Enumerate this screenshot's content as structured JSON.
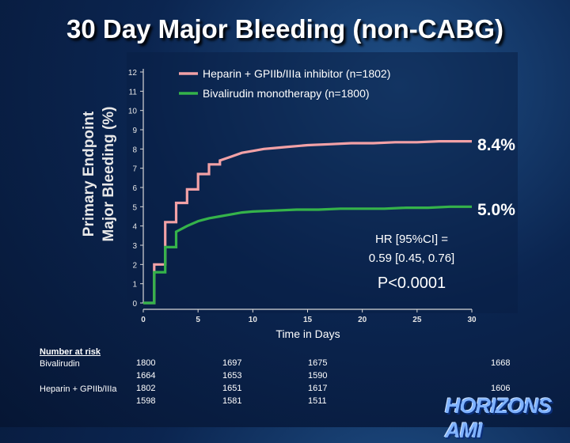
{
  "title": "30 Day Major Bleeding (non-CABG)",
  "ylabel_line1": "Primary Endpoint",
  "ylabel_line2": "Major Bleeding (%)",
  "logo_text": "HORIZONS AMI",
  "chart_data": {
    "type": "line",
    "xlabel": "Time in Days",
    "xlim": [
      0,
      30
    ],
    "ylim": [
      0,
      12
    ],
    "xticks": [
      0,
      5,
      10,
      15,
      20,
      25,
      30
    ],
    "yticks": [
      0,
      1,
      2,
      3,
      4,
      5,
      6,
      7,
      8,
      9,
      10,
      11,
      12
    ],
    "legend_position": "top",
    "series": [
      {
        "name": "Heparin + GPIIb/IIIa inhibitor (n=1802)",
        "color": "#f2a1a6",
        "x": [
          0,
          1,
          1,
          2,
          2,
          3,
          3,
          4,
          4,
          5,
          5,
          6,
          6,
          7,
          7,
          8,
          9,
          10,
          11,
          12,
          13,
          14,
          15,
          17,
          19,
          21,
          23,
          25,
          27,
          28,
          30
        ],
        "y": [
          0,
          0,
          2.0,
          2.0,
          4.2,
          4.2,
          5.2,
          5.2,
          5.9,
          5.9,
          6.7,
          6.7,
          7.2,
          7.2,
          7.4,
          7.6,
          7.8,
          7.9,
          8.0,
          8.05,
          8.1,
          8.15,
          8.2,
          8.25,
          8.3,
          8.3,
          8.35,
          8.35,
          8.4,
          8.4,
          8.4
        ],
        "end_label": "8.4%"
      },
      {
        "name": "Bivalirudin monotherapy (n=1800)",
        "color": "#35b34a",
        "x": [
          0,
          1,
          1,
          2,
          2,
          3,
          3,
          4,
          5,
          6,
          7,
          8,
          9,
          10,
          12,
          14,
          16,
          18,
          20,
          22,
          24,
          26,
          28,
          30
        ],
        "y": [
          0,
          0,
          1.6,
          1.6,
          2.9,
          2.9,
          3.7,
          4.0,
          4.25,
          4.4,
          4.5,
          4.6,
          4.7,
          4.75,
          4.8,
          4.85,
          4.85,
          4.9,
          4.9,
          4.9,
          4.95,
          4.95,
          5.0,
          5.0
        ],
        "end_label": "5.0%"
      }
    ],
    "annotations": {
      "hr_line1": "HR [95%CI] =",
      "hr_line2": "0.59 [0.45, 0.76]",
      "p_value": "P<0.0001"
    }
  },
  "risk_table": {
    "title": "Number at risk",
    "rows": [
      {
        "label": "Bivalirudin",
        "top": [
          "1800",
          "1697",
          "1675",
          "1668"
        ],
        "bottom": [
          "1664",
          "1653",
          "1590",
          ""
        ]
      },
      {
        "label": "Heparin + GPIIb/IIIa",
        "top": [
          "1802",
          "1651",
          "1617",
          "1606"
        ],
        "bottom": [
          "1598",
          "1581",
          "1511",
          ""
        ]
      }
    ]
  }
}
